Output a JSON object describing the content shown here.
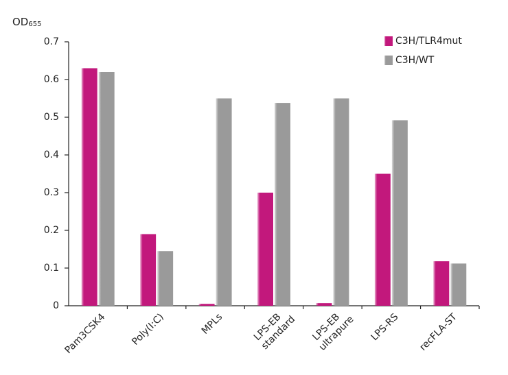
{
  "chart_data": {
    "type": "bar",
    "ylabel": {
      "text": "OD",
      "subscript": "655"
    },
    "categories": [
      [
        "Pam3CSK4"
      ],
      [
        "Poly(I:C)"
      ],
      [
        "MPLs"
      ],
      [
        "LPS-EB",
        "standard"
      ],
      [
        "LPS-EB",
        "ultrapure"
      ],
      [
        "LPS-RS"
      ],
      [
        "recFLA-ST"
      ]
    ],
    "series": [
      {
        "name": "C3H/TLR4mut",
        "color": "#c2187c",
        "values": [
          0.63,
          0.19,
          0.005,
          0.3,
          0.007,
          0.35,
          0.118
        ]
      },
      {
        "name": "C3H/WT",
        "color": "#9a9a9a",
        "values": [
          0.62,
          0.145,
          0.55,
          0.538,
          0.55,
          0.492,
          0.112
        ]
      }
    ],
    "ylim": [
      0,
      0.7
    ],
    "yticks": [
      0,
      0.1,
      0.2,
      0.3,
      0.4,
      0.5,
      0.6,
      0.7
    ],
    "grid": false,
    "legend": "top-right"
  }
}
